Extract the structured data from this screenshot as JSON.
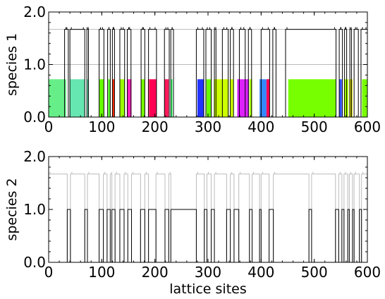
{
  "chart_data": [
    {
      "type": "area",
      "ylabel": "species 1",
      "xlim": [
        0,
        600
      ],
      "ylim": [
        0,
        2
      ],
      "x_ticks": [
        "0",
        "100",
        "200",
        "300",
        "400",
        "500",
        "600"
      ],
      "y_ticks": [
        "0.0",
        "1.0",
        "2.0"
      ],
      "grey_line_levels": [
        1.0,
        1.67
      ],
      "high_level": 1.67,
      "low_level": 0,
      "black_line_segments": [
        [
          30,
          37
        ],
        [
          40,
          68
        ],
        [
          72,
          75
        ],
        [
          95,
          104
        ],
        [
          111,
          116
        ],
        [
          120,
          124
        ],
        [
          134,
          143
        ],
        [
          148,
          155
        ],
        [
          174,
          181
        ],
        [
          188,
          203
        ],
        [
          218,
          227
        ],
        [
          230,
          235
        ],
        [
          278,
          292
        ],
        [
          296,
          306
        ],
        [
          312,
          315
        ],
        [
          327,
          338
        ],
        [
          342,
          348
        ],
        [
          359,
          370
        ],
        [
          376,
          382
        ],
        [
          400,
          416
        ],
        [
          422,
          428
        ],
        [
          446,
          541
        ],
        [
          547,
          553
        ],
        [
          557,
          561
        ],
        [
          567,
          570
        ],
        [
          575,
          583
        ],
        [
          588,
          600
        ]
      ],
      "fill_height": 0.72,
      "blocks": [
        {
          "x0": 0,
          "x1": 33,
          "color": "#66ee88"
        },
        {
          "x0": 40,
          "x1": 68,
          "color": "#66e6b0"
        },
        {
          "x0": 72,
          "x1": 75,
          "color": "#66e6b0"
        },
        {
          "x0": 95,
          "x1": 104,
          "color": "#66ff00"
        },
        {
          "x0": 112,
          "x1": 116,
          "color": "#55ff22"
        },
        {
          "x0": 120,
          "x1": 124,
          "color": "#ff2a00"
        },
        {
          "x0": 134,
          "x1": 143,
          "color": "#99ff00"
        },
        {
          "x0": 148,
          "x1": 156,
          "color": "#ff22bb"
        },
        {
          "x0": 174,
          "x1": 181,
          "color": "#77ff00"
        },
        {
          "x0": 187,
          "x1": 187.8,
          "color": "#ff0055"
        },
        {
          "x0": 189,
          "x1": 203,
          "color": "#ff0055"
        },
        {
          "x0": 218,
          "x1": 226,
          "color": "#ff1a5a"
        },
        {
          "x0": 230,
          "x1": 233,
          "color": "#33ff66"
        },
        {
          "x0": 280,
          "x1": 292,
          "color": "#2233ff"
        },
        {
          "x0": 297,
          "x1": 306,
          "color": "#66ff00"
        },
        {
          "x0": 311,
          "x1": 315,
          "color": "#ccff00"
        },
        {
          "x0": 315,
          "x1": 339,
          "color": "#ccff00"
        },
        {
          "x0": 342,
          "x1": 348,
          "color": "#ccff00"
        },
        {
          "x0": 355,
          "x1": 377,
          "color": "#dd22ff"
        },
        {
          "x0": 378,
          "x1": 383,
          "color": "#aaff00"
        },
        {
          "x0": 397,
          "x1": 410,
          "color": "#3388ff"
        },
        {
          "x0": 410,
          "x1": 416,
          "color": "#ff0055"
        },
        {
          "x0": 451,
          "x1": 541,
          "color": "#77ff00"
        },
        {
          "x0": 547,
          "x1": 552,
          "color": "#3355ff"
        },
        {
          "x0": 556,
          "x1": 564,
          "color": "#aaff00"
        },
        {
          "x0": 566,
          "x1": 572,
          "color": "#dddd00"
        },
        {
          "x0": 590,
          "x1": 600,
          "color": "#77ff00"
        }
      ]
    },
    {
      "type": "line",
      "ylabel": "species 2",
      "xlabel": "lattice sites",
      "xlim": [
        0,
        600
      ],
      "ylim": [
        0,
        2
      ],
      "x_ticks": [
        "0",
        "100",
        "200",
        "300",
        "400",
        "500",
        "600"
      ],
      "y_ticks": [
        "0.0",
        "1.0",
        "2.0"
      ],
      "grey_line_level": 1.67,
      "black_line_level": 1.0,
      "black_segments": [
        [
          35,
          41
        ],
        [
          68,
          73
        ],
        [
          95,
          103
        ],
        [
          110,
          116
        ],
        [
          119,
          125
        ],
        [
          134,
          142
        ],
        [
          149,
          156
        ],
        [
          173,
          181
        ],
        [
          188,
          202
        ],
        [
          219,
          226
        ],
        [
          230,
          278
        ],
        [
          293,
          298
        ],
        [
          306,
          312
        ],
        [
          335,
          342
        ],
        [
          349,
          358
        ],
        [
          378,
          383
        ],
        [
          397,
          400
        ],
        [
          415,
          423
        ],
        [
          490,
          495
        ],
        [
          540,
          546
        ],
        [
          552,
          556
        ],
        [
          563,
          566
        ],
        [
          572,
          575
        ],
        [
          585,
          589
        ]
      ]
    }
  ]
}
